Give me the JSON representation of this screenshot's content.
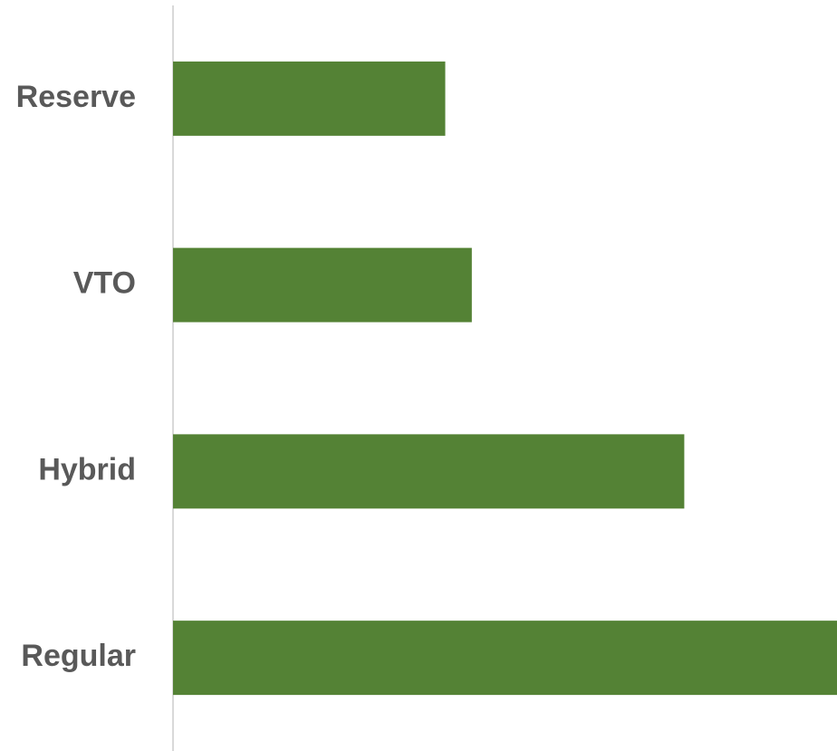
{
  "chart_data": {
    "type": "hbar",
    "categories": [
      "Reserve",
      "VTO",
      "Hybrid",
      "Regular"
    ],
    "values": [
      41,
      45,
      77,
      100
    ],
    "color": "#548235",
    "xlim": [
      0,
      100
    ]
  }
}
